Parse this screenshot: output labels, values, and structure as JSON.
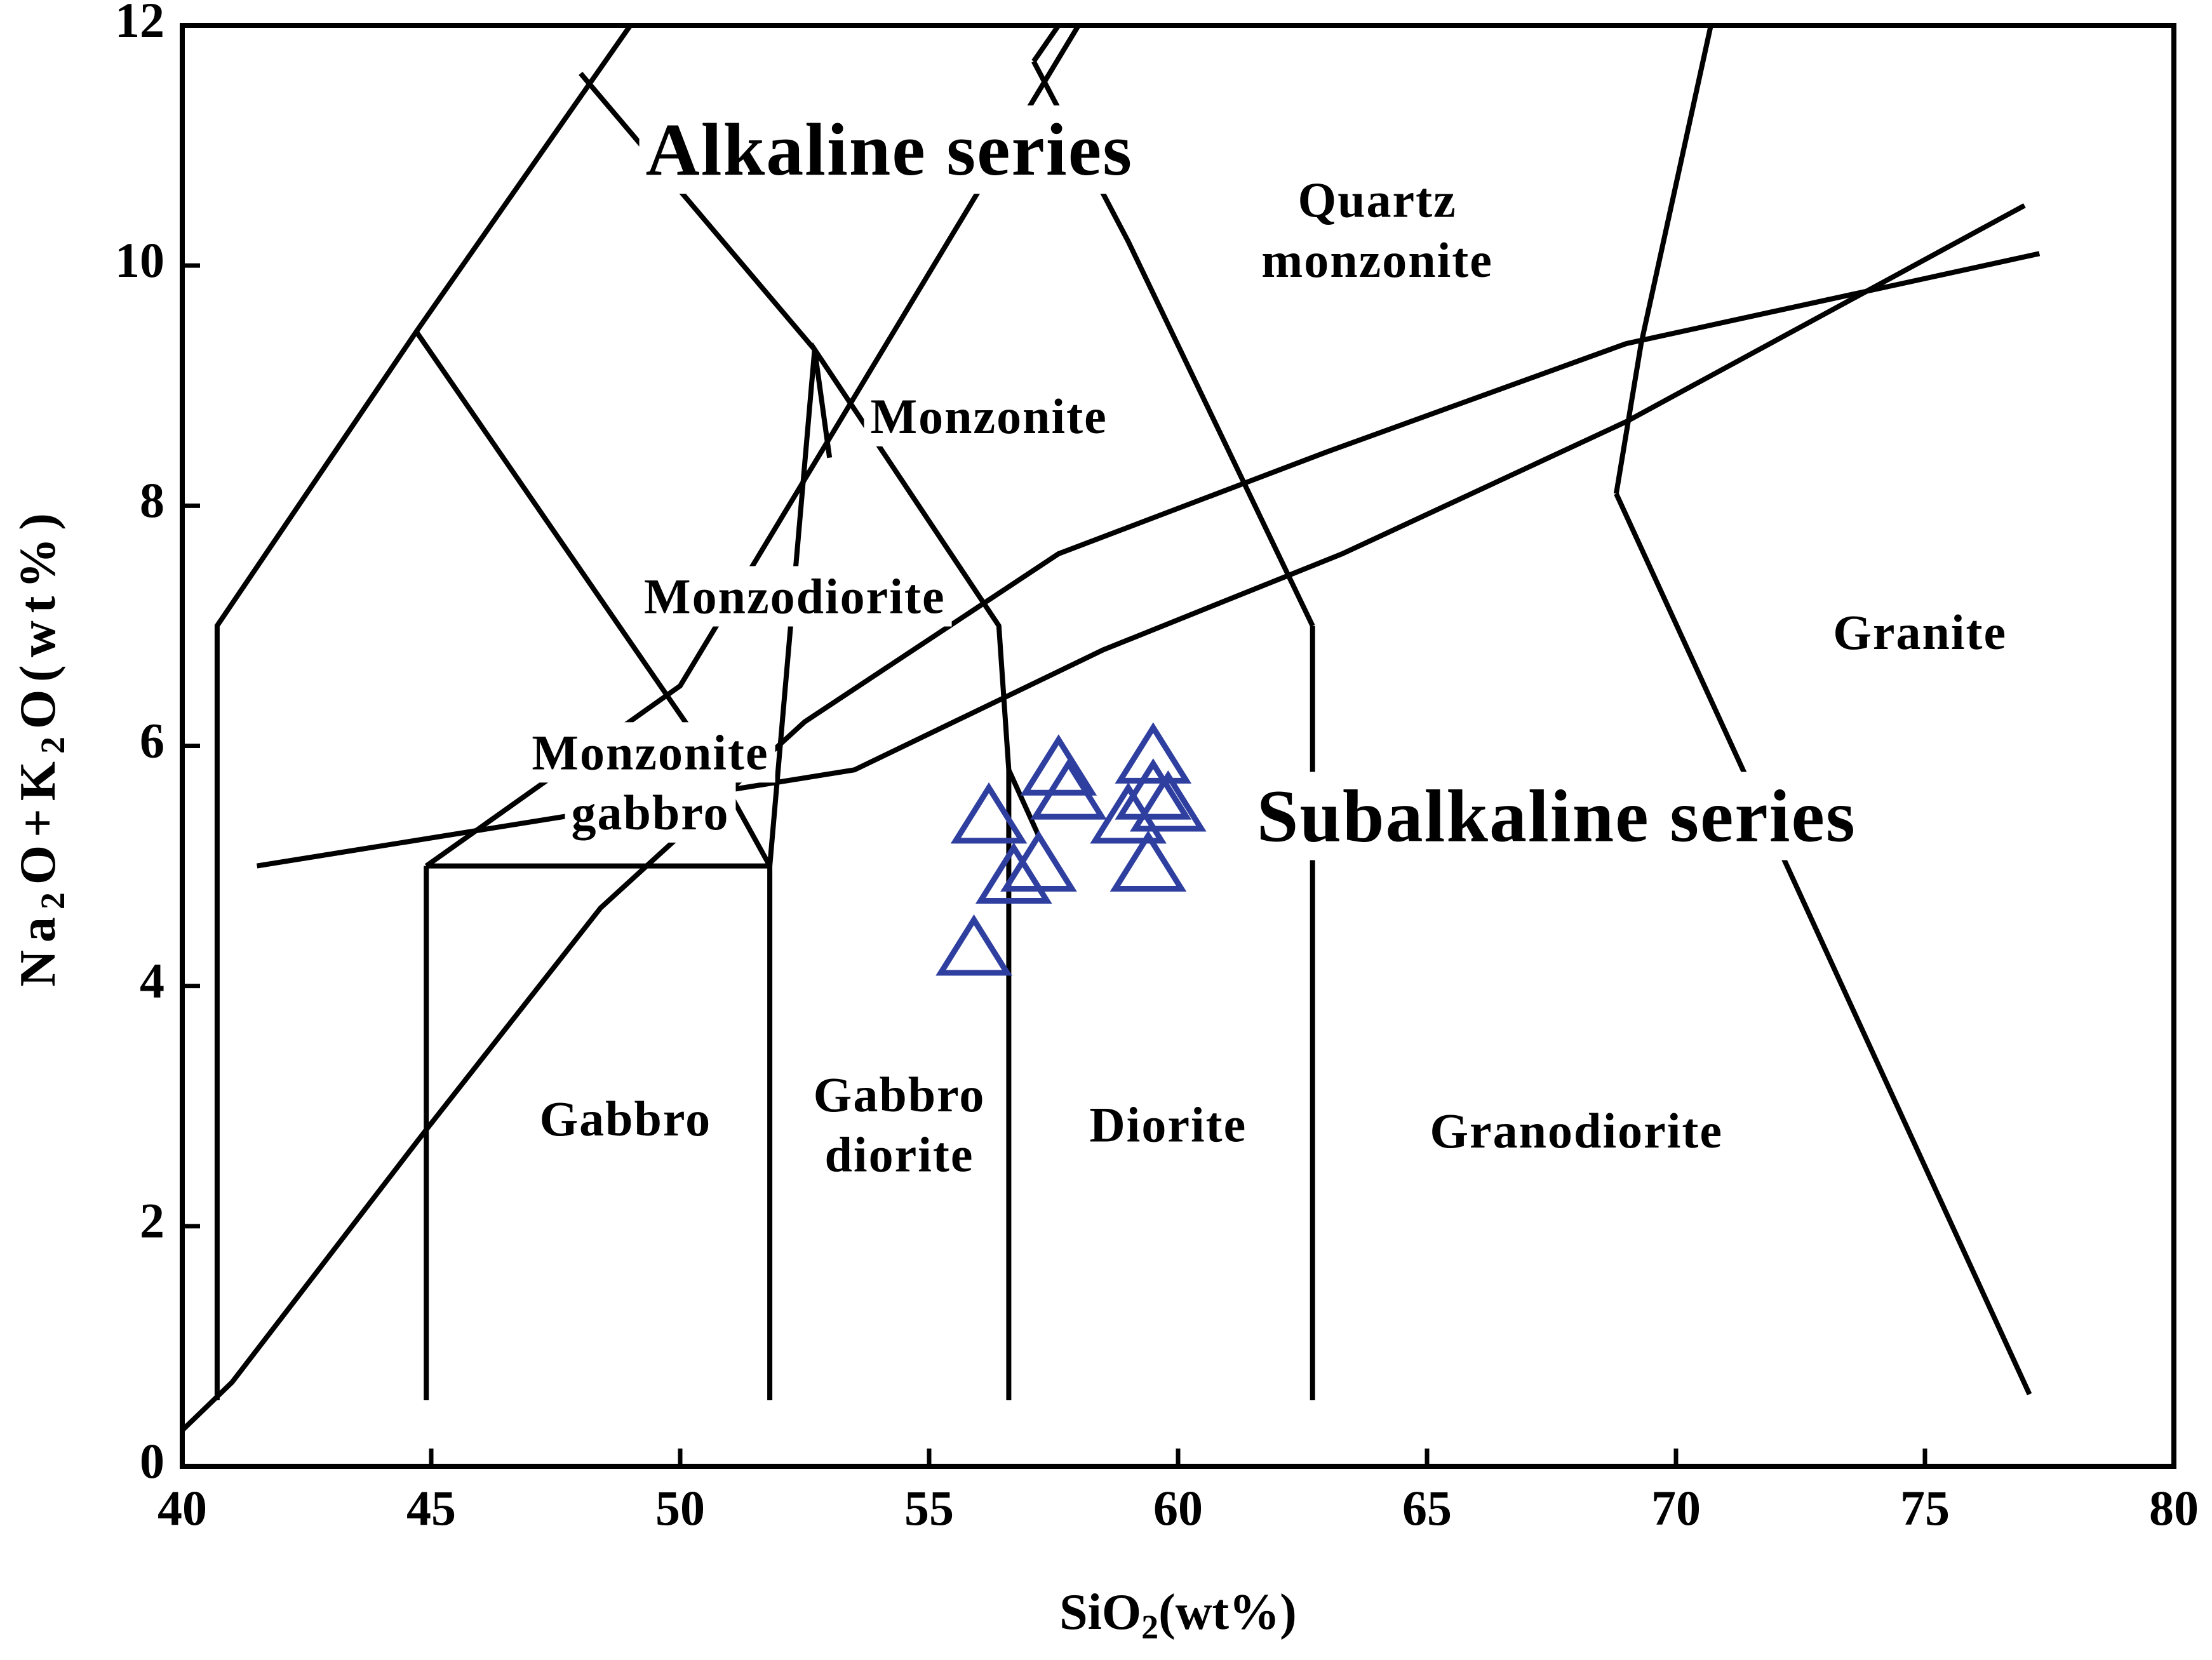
{
  "chart_data": {
    "type": "scatter",
    "title": "",
    "xlabel": "SiO2(wt%)",
    "xlabel_main": "SiO",
    "xlabel_sub": "2",
    "xlabel_tail": "(wt%)",
    "ylabel": "Na2O+K2O(wt%)",
    "ylabel_parts": [
      {
        "text": "Na",
        "sub": false
      },
      {
        "text": "2",
        "sub": true
      },
      {
        "text": "O+K",
        "sub": false
      },
      {
        "text": "2",
        "sub": true
      },
      {
        "text": "O(wt%)",
        "sub": false
      }
    ],
    "xlim": [
      40,
      80
    ],
    "ylim": [
      0,
      12
    ],
    "x_ticks": [
      40,
      45,
      50,
      55,
      60,
      65,
      70,
      75,
      80
    ],
    "y_ticks": [
      0,
      2,
      4,
      6,
      8,
      10,
      12
    ],
    "x_tick_labels": [
      "40",
      "45",
      "50",
      "55",
      "60",
      "65",
      "70",
      "75",
      "80"
    ],
    "y_tick_labels": [
      "0",
      "2",
      "4",
      "6",
      "8",
      "10",
      "12"
    ],
    "grid": false,
    "marker": "open-triangle",
    "marker_color": "#2f3fa0",
    "line_color": "#000000",
    "background": "#ffffff",
    "series": [
      {
        "x": [
          55.9,
          56.2,
          56.7,
          57.2,
          57.6,
          57.8,
          59.0,
          59.4,
          59.5,
          59.5,
          59.8
        ],
        "y": [
          4.3,
          5.4,
          4.9,
          5.0,
          5.8,
          5.6,
          5.4,
          5.0,
          5.9,
          5.6,
          5.5
        ]
      }
    ],
    "boundaries": [
      {
        "x": [
          40.0,
          41.0,
          44.8,
          48.4,
          52.5,
          57.6,
          63.0,
          69.0,
          77.3
        ],
        "y": [
          0.3,
          0.7,
          2.75,
          4.65,
          6.2,
          7.6,
          8.45,
          9.35,
          10.1
        ]
      },
      {
        "x": [
          41.5,
          53.5,
          58.5,
          63.3,
          69.0,
          77.0
        ],
        "y": [
          5.0,
          5.8,
          6.8,
          7.6,
          8.7,
          10.5
        ]
      },
      {
        "x": [
          40.7,
          40.7,
          44.7,
          49.0
        ],
        "y": [
          0.55,
          7.0,
          9.45,
          12.0
        ]
      },
      {
        "x": [
          44.7,
          50.6,
          51.8
        ],
        "y": [
          9.45,
          5.9,
          5.0
        ]
      },
      {
        "x": [
          51.8,
          52.7,
          56.4,
          56.6,
          57.2
        ],
        "y": [
          5.0,
          9.3,
          7.0,
          5.8,
          5.25
        ]
      },
      {
        "x": [
          48.0,
          52.7,
          53.0
        ],
        "y": [
          11.6,
          9.3,
          8.4
        ]
      },
      {
        "x": [
          44.9,
          50.0,
          58.0
        ],
        "y": [
          5.0,
          6.5,
          12.0
        ]
      },
      {
        "x": [
          57.1,
          59.0,
          62.7
        ],
        "y": [
          11.7,
          10.2,
          7.0
        ]
      },
      {
        "x": [
          57.1,
          57.6
        ],
        "y": [
          11.7,
          12.0
        ]
      },
      {
        "x": [
          44.9,
          44.9
        ],
        "y": [
          0.55,
          5.0
        ]
      },
      {
        "x": [
          44.9,
          51.8
        ],
        "y": [
          5.0,
          5.0
        ]
      },
      {
        "x": [
          51.8,
          51.8
        ],
        "y": [
          0.55,
          5.0
        ]
      },
      {
        "x": [
          56.6,
          56.6
        ],
        "y": [
          0.55,
          5.8
        ]
      },
      {
        "x": [
          62.7,
          62.7
        ],
        "y": [
          0.55,
          7.0
        ]
      },
      {
        "x": [
          68.8,
          77.1
        ],
        "y": [
          8.1,
          0.6
        ]
      },
      {
        "x": [
          68.8,
          69.3,
          70.7
        ],
        "y": [
          8.1,
          9.35,
          12.0
        ]
      }
    ],
    "field_labels": [
      {
        "text": "Quartz",
        "x": 64.0,
        "y": 10.5
      },
      {
        "text": "monzonite",
        "x": 64.0,
        "y": 10.0
      },
      {
        "text": "Monzonite",
        "x": 56.2,
        "y": 8.7
      },
      {
        "text": "Monzodiorite",
        "x": 52.3,
        "y": 7.2
      },
      {
        "text": "Monzonite",
        "x": 49.4,
        "y": 5.9
      },
      {
        "text": "gabbro",
        "x": 49.4,
        "y": 5.4
      },
      {
        "text": "Granite",
        "x": 74.9,
        "y": 6.9
      },
      {
        "text": "Gabbro",
        "x": 48.9,
        "y": 2.85
      },
      {
        "text": "Gabbro",
        "x": 54.4,
        "y": 3.05
      },
      {
        "text": "diorite",
        "x": 54.4,
        "y": 2.55
      },
      {
        "text": "Diorite",
        "x": 59.8,
        "y": 2.8
      },
      {
        "text": "Granodiorite",
        "x": 68.0,
        "y": 2.75
      }
    ],
    "series_labels": [
      {
        "text": "Alkaline series",
        "x": 54.2,
        "y": 10.9
      },
      {
        "text": "Subalkaline series",
        "x": 67.6,
        "y": 5.35
      }
    ]
  }
}
